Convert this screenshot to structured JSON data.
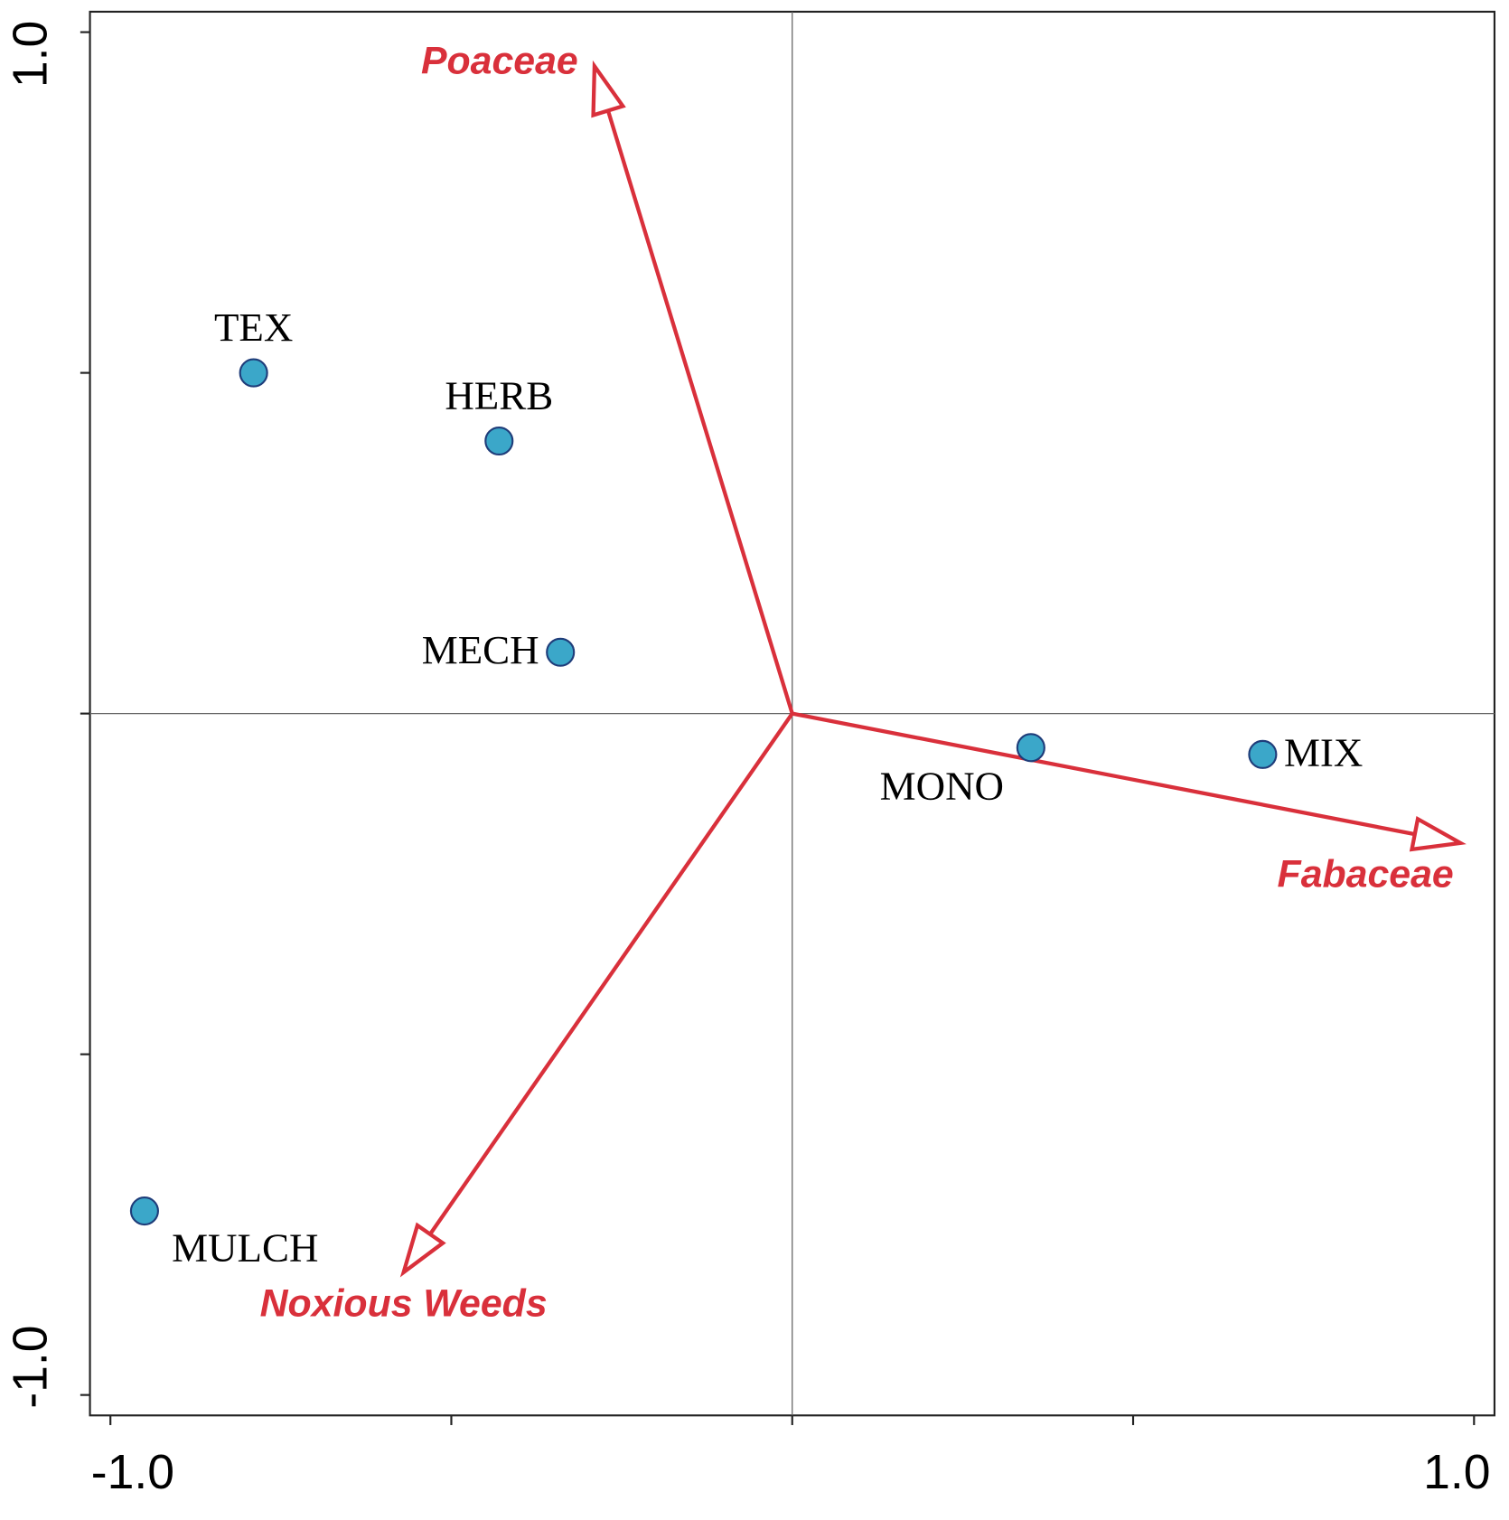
{
  "chart_data": {
    "type": "biplot",
    "xlim": [
      -1.03,
      1.03
    ],
    "ylim": [
      -1.03,
      1.03
    ],
    "xticks": [
      {
        "value": -1,
        "label": "-1.0"
      },
      {
        "value": -0.5,
        "label": null
      },
      {
        "value": 0,
        "label": null
      },
      {
        "value": 0.5,
        "label": null
      },
      {
        "value": 1,
        "label": "1.0"
      }
    ],
    "yticks": [
      {
        "value": -1,
        "label": "-1.0"
      },
      {
        "value": -0.5,
        "label": null
      },
      {
        "value": 0,
        "label": null
      },
      {
        "value": 0.5,
        "label": null
      },
      {
        "value": 1,
        "label": "1.0"
      }
    ],
    "zero_lines": true,
    "points": {
      "color": "#3ba7c9",
      "labels": [
        "TEX",
        "HERB",
        "MECH",
        "MONO",
        "MIX",
        "MULCH"
      ],
      "x": [
        -0.79,
        -0.43,
        -0.34,
        0.35,
        0.69,
        -0.95
      ],
      "y": [
        0.5,
        0.4,
        0.09,
        -0.05,
        -0.06,
        -0.73
      ]
    },
    "vectors": {
      "color": "#d9303b",
      "labels": [
        "Poaceae",
        "Fabaceae",
        "Noxious Weeds"
      ],
      "x": [
        -0.29,
        0.98,
        -0.57
      ],
      "y": [
        0.95,
        -0.19,
        -0.82
      ]
    }
  }
}
